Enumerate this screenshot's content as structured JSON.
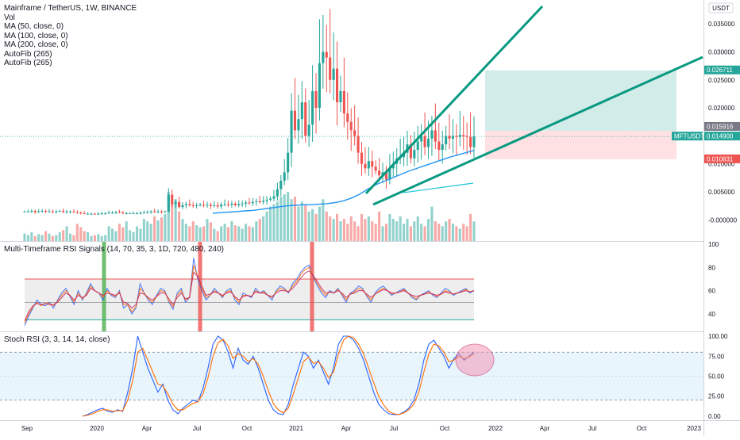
{
  "chart_title": "Mainframe / TetherUS, 1W, BINANCE",
  "legend": [
    "Vol",
    "MA (50, close, 0)",
    "MA (100, close, 0)",
    "MA (200, close, 0)",
    "AutoFib (265)",
    "AutoFib (265)"
  ],
  "currency_label": "USDT",
  "rsi_title": "Multi-Timeframe RSI Signals (14, 70, 35, 3, 1D, 720, 480, 240)",
  "stoch_title": "Stoch RSI (3, 3, 14, 14, close)",
  "colors": {
    "up": "#26a69a",
    "down": "#ef5350",
    "ma": "#2196f3",
    "trendline": "#089981",
    "target_zone": "#b2dfdb",
    "stop_zone": "#ffcdd2",
    "rsi_band": "#e0e0e0",
    "stoch_band": "#e3f2fd"
  },
  "chart_data": [
    {
      "type": "candlestick",
      "pair": "MFT/USDT",
      "timeframe": "1W",
      "exchange": "BINANCE",
      "x_ticks": [
        "Sep",
        "2020",
        "Apr",
        "Jul",
        "Oct",
        "2021",
        "Apr",
        "Jul",
        "Oct",
        "2022",
        "Apr",
        "Jul",
        "Oct",
        "2023"
      ],
      "y_ticks": [
        "0.035000",
        "0.030000",
        "0.025000",
        "0.020000",
        "0.015000",
        "0.010000",
        "0.005000",
        "-0.000000"
      ],
      "ylim": [
        -0.0025,
        0.038
      ],
      "price_labels": [
        {
          "text": "0.026711",
          "value": 0.026711,
          "kind": "target"
        },
        {
          "text": "0.015916",
          "value": 0.015916,
          "kind": "entry"
        },
        {
          "text": "0.014900",
          "value": 0.0149,
          "kind": "last",
          "tag": "MFTUSDT"
        },
        {
          "text": "0.010831",
          "value": 0.010831,
          "kind": "stop"
        }
      ],
      "closes": [
        0.0015,
        0.0015,
        0.0016,
        0.0014,
        0.0015,
        0.0016,
        0.0015,
        0.0015,
        0.0014,
        0.0015,
        0.0016,
        0.0014,
        0.0015,
        0.0015,
        0.0014,
        0.0013,
        0.0012,
        0.0011,
        0.0011,
        0.0011,
        0.001,
        0.0011,
        0.0012,
        0.0012,
        0.0013,
        0.0013,
        0.0014,
        0.0013,
        0.0012,
        0.0012,
        0.0012,
        0.0012,
        0.0012,
        0.0013,
        0.0013,
        0.0014,
        0.0015,
        0.0014,
        0.0015,
        0.0014,
        0.0015,
        0.0045,
        0.0028,
        0.0032,
        0.0023,
        0.0026,
        0.0028,
        0.0026,
        0.0025,
        0.0026,
        0.0027,
        0.0026,
        0.0027,
        0.0025,
        0.0026,
        0.0024,
        0.0027,
        0.0028,
        0.0027,
        0.0029,
        0.0026,
        0.0028,
        0.0029,
        0.0031,
        0.003,
        0.0032,
        0.0033,
        0.0032,
        0.0034,
        0.0036,
        0.0038,
        0.0042,
        0.0055,
        0.007,
        0.0085,
        0.012,
        0.0195,
        0.016,
        0.018,
        0.021,
        0.015,
        0.017,
        0.023,
        0.02,
        0.028,
        0.03,
        0.029,
        0.025,
        0.027,
        0.021,
        0.023,
        0.019,
        0.0175,
        0.016,
        0.015,
        0.012,
        0.01,
        0.0092,
        0.0105,
        0.0095,
        0.0088,
        0.008,
        0.0085,
        0.0072,
        0.0092,
        0.01,
        0.011,
        0.0112,
        0.012,
        0.0135,
        0.011,
        0.0125,
        0.014,
        0.015,
        0.013,
        0.0145,
        0.016,
        0.014,
        0.0125,
        0.0135,
        0.015,
        0.0145,
        0.015,
        0.0148,
        0.0152,
        0.015,
        0.0148,
        0.013,
        0.0149
      ],
      "ma_50": [
        0.0012,
        0.0013,
        0.0014,
        0.0015,
        0.0016,
        0.0017,
        0.0019,
        0.0021,
        0.0023,
        0.0025,
        0.0026,
        0.0027,
        0.0027,
        0.0028,
        0.0029,
        0.0031,
        0.0034,
        0.0039,
        0.0046,
        0.0055,
        0.0063,
        0.0069,
        0.0075,
        0.0081,
        0.0087,
        0.0092,
        0.0097,
        0.0102,
        0.0107,
        0.0112,
        0.0116,
        0.012,
        0.0124
      ],
      "volume": [
        0.15,
        0.12,
        0.18,
        0.1,
        0.14,
        0.12,
        0.2,
        0.15,
        0.1,
        0.12,
        0.18,
        0.22,
        0.3,
        0.15,
        0.12,
        0.35,
        0.28,
        0.2,
        0.18,
        0.1,
        0.12,
        0.14,
        0.1,
        0.12,
        0.3,
        0.25,
        0.2,
        0.35,
        0.28,
        0.4,
        0.22,
        0.18,
        0.3,
        0.25,
        0.45,
        0.4,
        0.35,
        0.5,
        0.42,
        0.48,
        0.55,
        1.0,
        0.75,
        0.85,
        0.6,
        0.45,
        0.35,
        0.3,
        0.4,
        0.32,
        0.28,
        0.3,
        0.45,
        0.38,
        0.25,
        0.2,
        0.3,
        0.35,
        0.28,
        0.4,
        0.32,
        0.3,
        0.25,
        0.35,
        0.3,
        0.28,
        0.4,
        0.45,
        0.5,
        0.6,
        0.7,
        0.75,
        0.8,
        0.9,
        0.95,
        1.0,
        0.85,
        0.9,
        0.7,
        0.8,
        0.75,
        0.6,
        0.65,
        0.55,
        0.7,
        0.85,
        0.6,
        0.5,
        0.45,
        0.55,
        0.4,
        0.45,
        0.35,
        0.5,
        0.4,
        0.3,
        0.55,
        0.45,
        0.5,
        0.4,
        0.35,
        0.6,
        0.3,
        0.35,
        0.55,
        0.45,
        0.4,
        0.5,
        0.35,
        0.45,
        0.3,
        0.4,
        0.5,
        0.35,
        0.3,
        0.45,
        0.7,
        0.4,
        0.35,
        0.3,
        0.4,
        0.45,
        0.35,
        0.3,
        0.25,
        0.35,
        0.3,
        0.55,
        0.4
      ]
    },
    {
      "type": "line",
      "name": "Multi-Timeframe RSI Signals",
      "y_ticks": [
        "100",
        "80",
        "60",
        "40"
      ],
      "ylim": [
        25,
        102
      ],
      "upper_level": 70,
      "lower_level": 35,
      "mid_level": 50,
      "buy_signals_x": [
        "2020"
      ],
      "sell_signals_x": [
        "Jul",
        "2021"
      ],
      "series": [
        {
          "values": [
            30,
            38,
            45,
            52,
            48,
            47,
            50,
            45,
            52,
            58,
            62,
            55,
            48,
            60,
            52,
            58,
            66,
            60,
            58,
            52,
            62,
            56,
            54,
            60,
            45,
            48,
            40,
            45,
            66,
            58,
            52,
            48,
            56,
            62,
            60,
            50,
            44,
            58,
            62,
            50,
            54,
            88,
            70,
            60,
            52,
            56,
            62,
            58,
            54,
            60,
            62,
            52,
            48,
            58,
            56,
            54,
            62,
            58,
            60,
            56,
            52,
            60,
            64,
            62,
            58,
            66,
            70,
            76,
            80,
            82,
            72,
            64,
            58,
            54,
            60,
            58,
            62,
            56,
            50,
            58,
            60,
            64,
            62,
            55,
            50,
            58,
            62,
            64,
            60,
            56,
            58,
            60,
            62,
            58,
            54,
            52,
            56,
            58,
            60,
            56,
            54,
            58,
            62,
            60,
            56,
            58,
            60,
            62,
            58,
            60
          ]
        },
        {
          "values": [
            32,
            40,
            46,
            50,
            47,
            49,
            49,
            47,
            51,
            56,
            60,
            56,
            50,
            58,
            53,
            57,
            64,
            60,
            58,
            54,
            60,
            57,
            55,
            59,
            48,
            48,
            42,
            46,
            62,
            58,
            53,
            50,
            55,
            60,
            59,
            51,
            46,
            56,
            60,
            52,
            54,
            82,
            72,
            62,
            54,
            56,
            60,
            58,
            55,
            59,
            60,
            54,
            50,
            56,
            56,
            55,
            60,
            58,
            59,
            56,
            54,
            59,
            62,
            61,
            59,
            64,
            68,
            74,
            78,
            80,
            73,
            66,
            60,
            56,
            59,
            58,
            61,
            57,
            52,
            57,
            59,
            62,
            61,
            56,
            52,
            57,
            60,
            62,
            60,
            57,
            58,
            59,
            61,
            58,
            55,
            53,
            56,
            57,
            59,
            57,
            55,
            57,
            60,
            59,
            57,
            58,
            59,
            61,
            59,
            60
          ]
        },
        {
          "values": [
            34,
            42,
            47,
            49,
            48,
            49,
            48,
            48,
            50,
            54,
            58,
            56,
            52,
            56,
            54,
            56,
            62,
            60,
            58,
            56,
            58,
            57,
            56,
            58,
            50,
            49,
            45,
            48,
            58,
            57,
            54,
            52,
            55,
            58,
            58,
            53,
            48,
            54,
            58,
            53,
            54,
            76,
            72,
            64,
            56,
            57,
            59,
            58,
            56,
            58,
            59,
            55,
            52,
            55,
            56,
            55,
            59,
            58,
            58,
            56,
            55,
            58,
            60,
            60,
            59,
            62,
            66,
            71,
            75,
            77,
            73,
            68,
            62,
            58,
            59,
            58,
            60,
            58,
            54,
            57,
            58,
            60,
            60,
            57,
            54,
            57,
            59,
            61,
            60,
            58,
            58,
            59,
            60,
            58,
            56,
            55,
            56,
            57,
            58,
            57,
            56,
            57,
            59,
            58,
            57,
            58,
            59,
            60,
            59,
            60
          ]
        }
      ]
    },
    {
      "type": "line",
      "name": "Stoch RSI",
      "y_ticks": [
        "100.00",
        "75.00",
        "50.00",
        "25.00",
        "0.00"
      ],
      "ylim": [
        -5,
        105
      ],
      "upper_level": 80,
      "lower_level": 20,
      "series": [
        {
          "values": [
            0,
            2,
            5,
            8,
            10,
            6,
            5,
            8,
            6,
            30,
            60,
            100,
            80,
            60,
            45,
            30,
            40,
            20,
            8,
            3,
            10,
            15,
            20,
            18,
            35,
            60,
            90,
            100,
            95,
            80,
            60,
            85,
            70,
            65,
            75,
            60,
            40,
            20,
            8,
            3,
            2,
            15,
            40,
            60,
            80,
            75,
            60,
            70,
            55,
            40,
            60,
            90,
            100,
            100,
            95,
            85,
            70,
            50,
            30,
            15,
            8,
            3,
            2,
            2,
            5,
            10,
            20,
            40,
            70,
            90,
            95,
            85,
            75,
            60,
            72,
            78,
            70,
            75,
            80
          ]
        },
        {
          "values": [
            0,
            1,
            3,
            6,
            8,
            8,
            6,
            7,
            7,
            20,
            45,
            80,
            85,
            70,
            55,
            40,
            38,
            28,
            15,
            8,
            8,
            12,
            16,
            18,
            28,
            48,
            75,
            92,
            96,
            88,
            72,
            78,
            75,
            68,
            72,
            65,
            50,
            32,
            16,
            8,
            4,
            10,
            28,
            48,
            68,
            74,
            66,
            68,
            60,
            48,
            55,
            78,
            95,
            100,
            98,
            90,
            78,
            60,
            42,
            25,
            14,
            6,
            3,
            2,
            4,
            8,
            15,
            30,
            55,
            78,
            90,
            88,
            80,
            68,
            70,
            75,
            72,
            74,
            78
          ]
        }
      ]
    }
  ]
}
